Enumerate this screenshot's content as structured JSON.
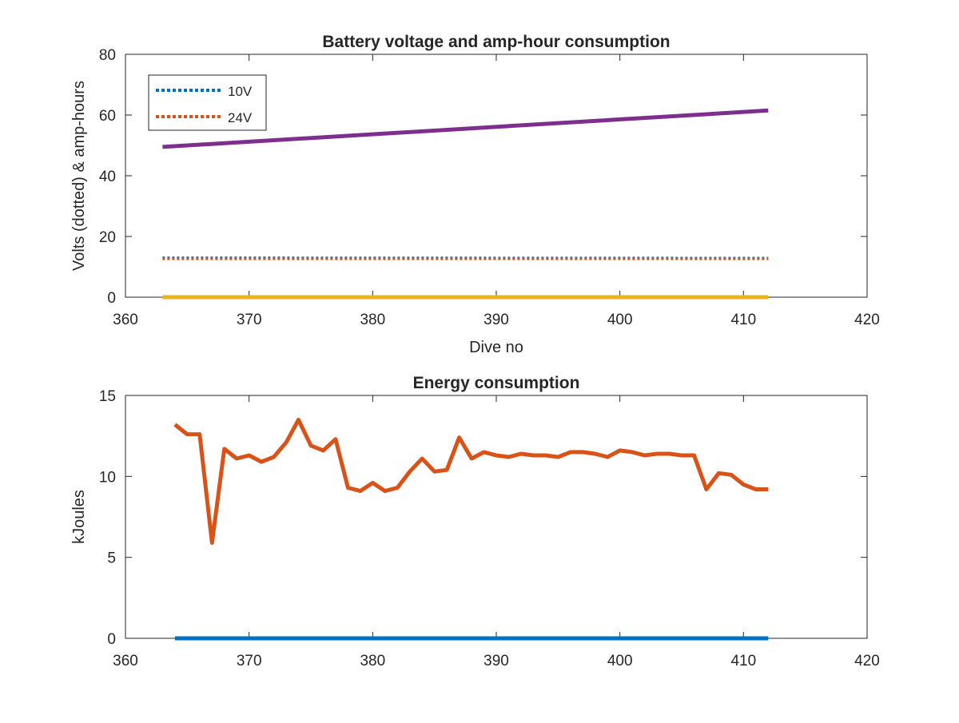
{
  "chart_data": [
    {
      "type": "line",
      "title": "Battery voltage and amp-hour consumption",
      "xlabel": "Dive no",
      "ylabel": "Volts (dotted) & amp-hours",
      "xlim": [
        360,
        420
      ],
      "ylim": [
        0,
        80
      ],
      "xticks": [
        "360",
        "370",
        "380",
        "390",
        "400",
        "410",
        "420"
      ],
      "yticks": [
        "0",
        "20",
        "40",
        "60",
        "80"
      ],
      "grid": false,
      "legend_placement": "top-left",
      "series": [
        {
          "name": "10V",
          "style": "dotted",
          "color": "#0072BD",
          "x": [
            363,
            412
          ],
          "y": [
            13.0,
            12.9
          ]
        },
        {
          "name": "24V",
          "style": "dotted",
          "color": "#D95319",
          "x": [
            363,
            412
          ],
          "y": [
            12.6,
            12.6
          ]
        },
        {
          "style": "solid",
          "color": "#EDB120",
          "x": [
            363,
            412
          ],
          "y": [
            0,
            0
          ]
        },
        {
          "style": "solid",
          "color": "#7E2F8E",
          "x": [
            363,
            412
          ],
          "y": [
            49.5,
            61.5
          ]
        }
      ]
    },
    {
      "type": "line",
      "title": "Energy consumption",
      "xlabel": "",
      "ylabel": "kJoules",
      "xlim": [
        360,
        420
      ],
      "ylim": [
        0,
        15
      ],
      "xticks": [
        "360",
        "370",
        "380",
        "390",
        "400",
        "410",
        "420"
      ],
      "yticks": [
        "0",
        "5",
        "10",
        "15"
      ],
      "grid": false,
      "series": [
        {
          "style": "solid",
          "color": "#0072BD",
          "x": [
            364,
            412
          ],
          "y": [
            0,
            0
          ]
        },
        {
          "style": "solid",
          "color": "#D95319",
          "x": [
            364,
            365,
            366,
            367,
            368,
            369,
            370,
            371,
            372,
            373,
            374,
            375,
            376,
            377,
            378,
            379,
            380,
            381,
            382,
            383,
            384,
            385,
            386,
            387,
            388,
            389,
            390,
            391,
            392,
            393,
            394,
            395,
            396,
            397,
            398,
            399,
            400,
            401,
            402,
            403,
            404,
            405,
            406,
            407,
            408,
            409,
            410,
            411,
            412
          ],
          "y": [
            13.2,
            12.6,
            12.6,
            5.9,
            11.7,
            11.1,
            11.3,
            10.9,
            11.2,
            12.1,
            13.5,
            11.9,
            11.6,
            12.3,
            9.3,
            9.1,
            9.6,
            9.1,
            9.3,
            10.3,
            11.1,
            10.3,
            10.4,
            12.4,
            11.1,
            11.5,
            11.3,
            11.2,
            11.4,
            11.3,
            11.3,
            11.2,
            11.5,
            11.5,
            11.4,
            11.2,
            11.6,
            11.5,
            11.3,
            11.4,
            11.4,
            11.3,
            11.3,
            9.2,
            10.2,
            10.1,
            9.5,
            9.2,
            9.2
          ]
        }
      ]
    }
  ]
}
